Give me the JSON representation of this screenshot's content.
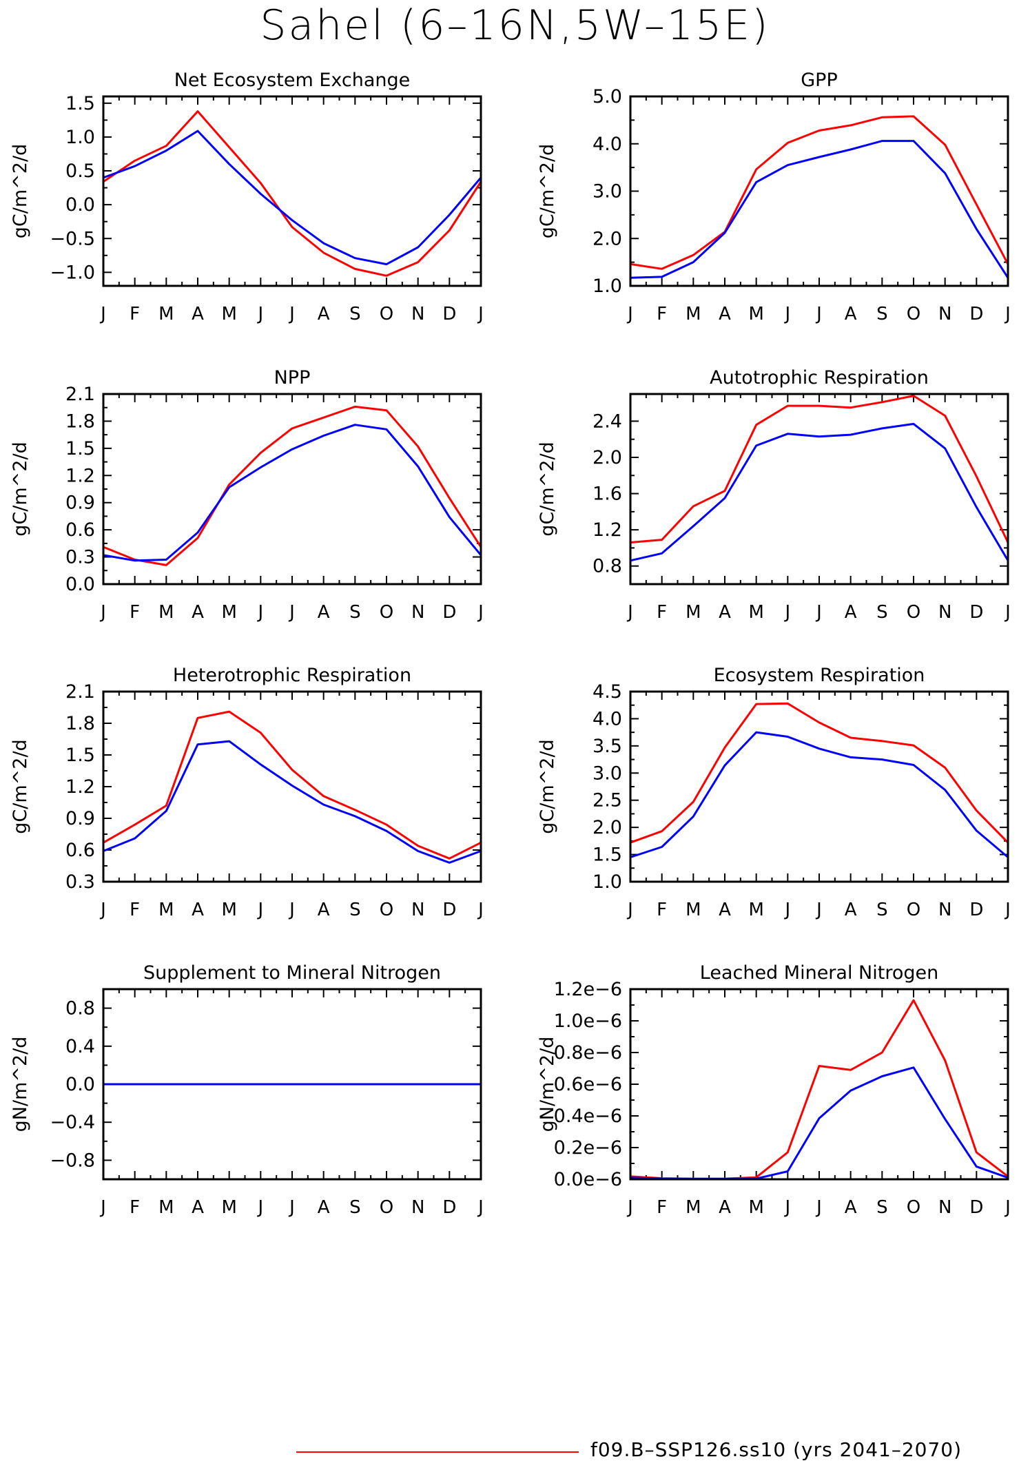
{
  "title": "Sahel (6–16N,5W–15E)",
  "legend": {
    "label": "f09.B–SSP126.ss10 (yrs 2041–2070)",
    "color": "#ff0000"
  },
  "colors": {
    "red": "#ff0000",
    "blue": "#0000ff"
  },
  "chart_data": [
    {
      "type": "line",
      "title": "Net Ecosystem Exchange",
      "ylabel": "gC/m^2/d",
      "categories": [
        "J",
        "F",
        "M",
        "A",
        "M",
        "J",
        "J",
        "A",
        "S",
        "O",
        "N",
        "D",
        "J"
      ],
      "ylim": [
        -1.2,
        1.6
      ],
      "yticks": [
        -1.0,
        -0.5,
        0.0,
        0.5,
        1.0,
        1.5
      ],
      "ytick_labels": [
        "-1.0",
        "-0.5",
        "0.0",
        "0.5",
        "1.0",
        "1.5"
      ],
      "series": [
        {
          "color": "#ff0000",
          "values": [
            0.34,
            0.65,
            0.87,
            1.38,
            0.85,
            0.32,
            -0.33,
            -0.71,
            -0.95,
            -1.05,
            -0.85,
            -0.38,
            0.34
          ]
        },
        {
          "color": "#0000ff",
          "values": [
            0.4,
            0.57,
            0.8,
            1.09,
            0.6,
            0.16,
            -0.23,
            -0.57,
            -0.79,
            -0.88,
            -0.63,
            -0.15,
            0.4
          ]
        }
      ]
    },
    {
      "type": "line",
      "title": "GPP",
      "ylabel": "gC/m^2/d",
      "categories": [
        "J",
        "F",
        "M",
        "A",
        "M",
        "J",
        "J",
        "A",
        "S",
        "O",
        "N",
        "D",
        "J"
      ],
      "ylim": [
        1.0,
        5.0
      ],
      "yticks": [
        1.0,
        2.0,
        3.0,
        4.0,
        5.0
      ],
      "ytick_labels": [
        "1.0",
        "2.0",
        "3.0",
        "4.0",
        "5.0"
      ],
      "series": [
        {
          "color": "#ff0000",
          "values": [
            1.46,
            1.36,
            1.65,
            2.14,
            3.46,
            4.02,
            4.28,
            4.39,
            4.56,
            4.58,
            3.98,
            2.72,
            1.46
          ]
        },
        {
          "color": "#0000ff",
          "values": [
            1.17,
            1.19,
            1.5,
            2.12,
            3.19,
            3.55,
            3.72,
            3.88,
            4.06,
            4.06,
            3.38,
            2.2,
            1.17
          ]
        }
      ]
    },
    {
      "type": "line",
      "title": "NPP",
      "ylabel": "gC/m^2/d",
      "categories": [
        "J",
        "F",
        "M",
        "A",
        "M",
        "J",
        "J",
        "A",
        "S",
        "O",
        "N",
        "D",
        "J"
      ],
      "ylim": [
        0.0,
        2.1
      ],
      "yticks": [
        0.0,
        0.3,
        0.6,
        0.9,
        1.2,
        1.5,
        1.8,
        2.1
      ],
      "ytick_labels": [
        "0.0",
        "0.3",
        "0.6",
        "0.9",
        "1.2",
        "1.5",
        "1.8",
        "2.1"
      ],
      "series": [
        {
          "color": "#ff0000",
          "values": [
            0.41,
            0.27,
            0.21,
            0.51,
            1.1,
            1.45,
            1.72,
            1.84,
            1.96,
            1.92,
            1.52,
            0.95,
            0.41
          ]
        },
        {
          "color": "#0000ff",
          "values": [
            0.32,
            0.26,
            0.27,
            0.57,
            1.07,
            1.29,
            1.49,
            1.64,
            1.76,
            1.71,
            1.3,
            0.74,
            0.32
          ]
        }
      ]
    },
    {
      "type": "line",
      "title": "Autotrophic Respiration",
      "ylabel": "gC/m^2/d",
      "categories": [
        "J",
        "F",
        "M",
        "A",
        "M",
        "J",
        "J",
        "A",
        "S",
        "O",
        "N",
        "D",
        "J"
      ],
      "ylim": [
        0.6,
        2.7
      ],
      "yticks": [
        0.8,
        1.2,
        1.6,
        2.0,
        2.4
      ],
      "ytick_labels": [
        "0.8",
        "1.2",
        "1.6",
        "2.0",
        "2.4"
      ],
      "series": [
        {
          "color": "#ff0000",
          "values": [
            1.06,
            1.09,
            1.46,
            1.63,
            2.36,
            2.57,
            2.57,
            2.55,
            2.61,
            2.68,
            2.46,
            1.79,
            1.06
          ]
        },
        {
          "color": "#0000ff",
          "values": [
            0.86,
            0.94,
            1.24,
            1.55,
            2.13,
            2.26,
            2.23,
            2.25,
            2.32,
            2.37,
            2.1,
            1.45,
            0.86
          ]
        }
      ]
    },
    {
      "type": "line",
      "title": "Heterotrophic Respiration",
      "ylabel": "gC/m^2/d",
      "categories": [
        "J",
        "F",
        "M",
        "A",
        "M",
        "J",
        "J",
        "A",
        "S",
        "O",
        "N",
        "D",
        "J"
      ],
      "ylim": [
        0.3,
        2.1
      ],
      "yticks": [
        0.3,
        0.6,
        0.9,
        1.2,
        1.5,
        1.8,
        2.1
      ],
      "ytick_labels": [
        "0.3",
        "0.6",
        "0.9",
        "1.2",
        "1.5",
        "1.8",
        "2.1"
      ],
      "series": [
        {
          "color": "#ff0000",
          "values": [
            0.67,
            0.84,
            1.02,
            1.85,
            1.91,
            1.71,
            1.36,
            1.11,
            0.98,
            0.84,
            0.64,
            0.52,
            0.67
          ]
        },
        {
          "color": "#0000ff",
          "values": [
            0.59,
            0.71,
            0.97,
            1.6,
            1.63,
            1.41,
            1.21,
            1.03,
            0.92,
            0.78,
            0.59,
            0.48,
            0.59
          ]
        }
      ]
    },
    {
      "type": "line",
      "title": "Ecosystem Respiration",
      "ylabel": "gC/m^2/d",
      "categories": [
        "J",
        "F",
        "M",
        "A",
        "M",
        "J",
        "J",
        "A",
        "S",
        "O",
        "N",
        "D",
        "J"
      ],
      "ylim": [
        1.0,
        4.5
      ],
      "yticks": [
        1.0,
        1.5,
        2.0,
        2.5,
        3.0,
        3.5,
        4.0,
        4.5
      ],
      "ytick_labels": [
        "1.0",
        "1.5",
        "2.0",
        "2.5",
        "3.0",
        "3.5",
        "4.0",
        "4.5"
      ],
      "series": [
        {
          "color": "#ff0000",
          "values": [
            1.72,
            1.93,
            2.47,
            3.47,
            4.27,
            4.28,
            3.93,
            3.65,
            3.59,
            3.51,
            3.1,
            2.31,
            1.72
          ]
        },
        {
          "color": "#0000ff",
          "values": [
            1.45,
            1.64,
            2.2,
            3.14,
            3.75,
            3.67,
            3.45,
            3.29,
            3.25,
            3.15,
            2.69,
            1.94,
            1.45
          ]
        }
      ]
    },
    {
      "type": "line",
      "title": "Supplement to Mineral Nitrogen",
      "ylabel": "gN/m^2/d",
      "categories": [
        "J",
        "F",
        "M",
        "A",
        "M",
        "J",
        "J",
        "A",
        "S",
        "O",
        "N",
        "D",
        "J"
      ],
      "ylim": [
        -1.0,
        1.0
      ],
      "yticks": [
        -0.8,
        -0.4,
        0.0,
        0.4,
        0.8
      ],
      "ytick_labels": [
        "-0.8",
        "-0.4",
        "0.0",
        "0.4",
        "0.8"
      ],
      "series": [
        {
          "color": "#ff0000",
          "values": [
            0,
            0,
            0,
            0,
            0,
            0,
            0,
            0,
            0,
            0,
            0,
            0,
            0
          ]
        },
        {
          "color": "#0000ff",
          "values": [
            0,
            0,
            0,
            0,
            0,
            0,
            0,
            0,
            0,
            0,
            0,
            0,
            0
          ]
        }
      ]
    },
    {
      "type": "line",
      "title": "Leached Mineral Nitrogen",
      "ylabel": "gN/m^2/d",
      "categories": [
        "J",
        "F",
        "M",
        "A",
        "M",
        "J",
        "J",
        "A",
        "S",
        "O",
        "N",
        "D",
        "J"
      ],
      "ylim": [
        0.0,
        1.2e-06
      ],
      "yticks": [
        0.0,
        2e-07,
        4e-07,
        6e-07,
        8e-07,
        1e-06,
        1.2e-06
      ],
      "ytick_labels": [
        "0.0e-6",
        "0.2e-6",
        "0.4e-6",
        "0.6e-6",
        "0.8e-6",
        "1.0e-6",
        "1.2e-6"
      ],
      "series": [
        {
          "color": "#ff0000",
          "values": [
            1.8e-08,
            6e-09,
            4e-09,
            4e-09,
            1.2e-08,
            1.7e-07,
            7.15e-07,
            6.9e-07,
            8e-07,
            1.13e-06,
            7.5e-07,
            1.7e-07,
            1.8e-08
          ]
        },
        {
          "color": "#0000ff",
          "values": [
            1e-08,
            4e-09,
            2e-09,
            2e-09,
            4e-09,
            5e-08,
            3.85e-07,
            5.6e-07,
            6.5e-07,
            7.05e-07,
            3.8e-07,
            8e-08,
            1e-08
          ]
        }
      ]
    }
  ]
}
